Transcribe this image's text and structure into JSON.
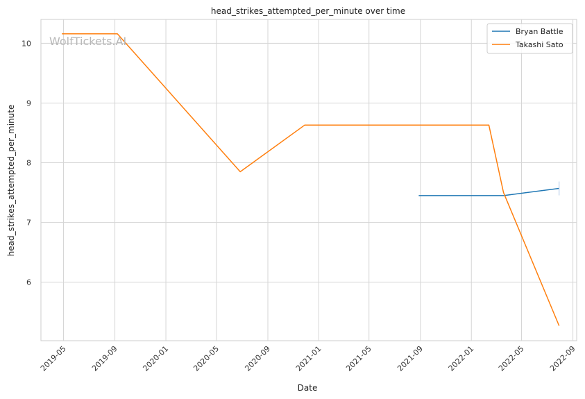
{
  "chart_data": {
    "type": "line",
    "title": "head_strikes_attempted_per_minute over time",
    "xlabel": "Date",
    "ylabel": "head_strikes_attempted_per_minute",
    "watermark": "WolfTickets.AI",
    "x_ticks": [
      "2019-05",
      "2019-09",
      "2020-01",
      "2020-05",
      "2020-09",
      "2021-01",
      "2021-05",
      "2021-09",
      "2022-01",
      "2022-05",
      "2022-09"
    ],
    "y_ticks": [
      6,
      7,
      8,
      9,
      10
    ],
    "xlim": [
      "2019-03-08",
      "2022-09-10"
    ],
    "ylim": [
      5.02,
      10.4
    ],
    "grid": true,
    "legend_position": "top-right",
    "series": [
      {
        "name": "Bryan Battle",
        "color": "#1f77b4",
        "points": [
          {
            "x": "2021-08-28",
            "y": 7.45
          },
          {
            "x": "2022-03-19",
            "y": 7.45
          },
          {
            "x": "2022-07-30",
            "y": 7.57
          }
        ]
      },
      {
        "name": "Takashi Sato",
        "color": "#ff7f0e",
        "points": [
          {
            "x": "2019-04-27",
            "y": 10.16
          },
          {
            "x": "2019-09-07",
            "y": 10.16
          },
          {
            "x": "2020-06-27",
            "y": 7.85
          },
          {
            "x": "2020-11-28",
            "y": 8.63
          },
          {
            "x": "2022-02-12",
            "y": 8.63
          },
          {
            "x": "2022-03-19",
            "y": 7.5
          },
          {
            "x": "2022-07-30",
            "y": 5.27
          }
        ]
      }
    ]
  }
}
